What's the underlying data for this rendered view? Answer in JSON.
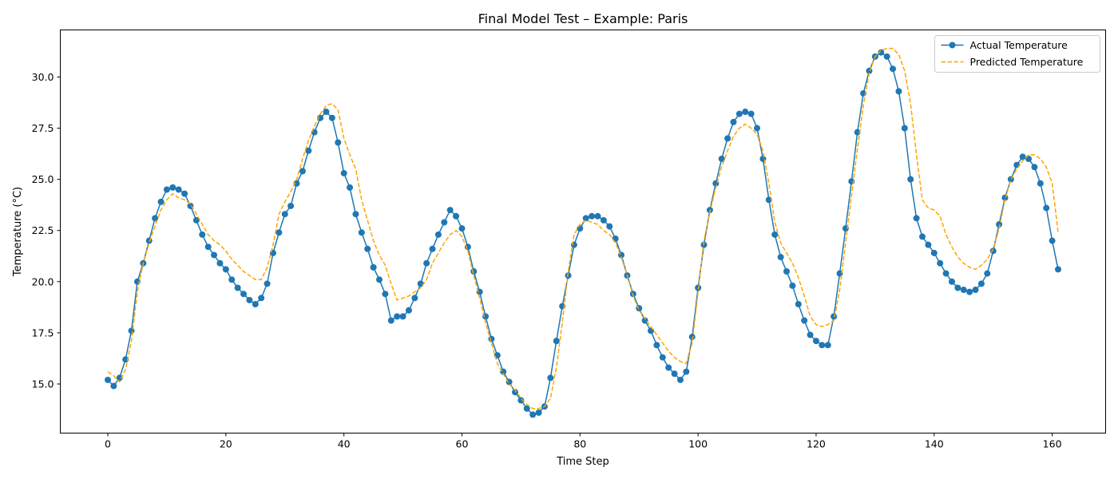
{
  "chart_data": {
    "type": "line",
    "title": "Final Model Test – Example: Paris",
    "xlabel": "Time Step",
    "ylabel": "Temperature (°C)",
    "xlim": [
      -8.05,
      169.05
    ],
    "ylim": [
      12.6,
      32.3
    ],
    "xticks": [
      0,
      20,
      40,
      60,
      80,
      100,
      120,
      140,
      160
    ],
    "yticks": [
      15.0,
      17.5,
      20.0,
      22.5,
      25.0,
      27.5,
      30.0
    ],
    "ytick_labels": [
      "15.0",
      "17.5",
      "20.0",
      "22.5",
      "25.0",
      "27.5",
      "30.0"
    ],
    "grid": false,
    "legend_position": "top-right",
    "series": [
      {
        "name": "Actual Temperature",
        "color": "#1f77b4",
        "style": "solid-with-markers",
        "values": [
          15.2,
          14.9,
          15.3,
          16.2,
          17.6,
          20.0,
          20.9,
          22.0,
          23.1,
          23.9,
          24.5,
          24.6,
          24.5,
          24.3,
          23.7,
          23.0,
          22.3,
          21.7,
          21.3,
          20.9,
          20.6,
          20.1,
          19.7,
          19.4,
          19.1,
          18.9,
          19.2,
          19.9,
          21.4,
          22.4,
          23.3,
          23.7,
          24.8,
          25.4,
          26.4,
          27.3,
          28.0,
          28.3,
          28.0,
          26.8,
          25.3,
          24.6,
          23.3,
          22.4,
          21.6,
          20.7,
          20.1,
          19.4,
          18.1,
          18.3,
          18.3,
          18.6,
          19.2,
          19.9,
          20.9,
          21.6,
          22.3,
          22.9,
          23.5,
          23.2,
          22.6,
          21.7,
          20.5,
          19.5,
          18.3,
          17.2,
          16.4,
          15.6,
          15.1,
          14.6,
          14.2,
          13.8,
          13.5,
          13.6,
          13.9,
          15.3,
          17.1,
          18.8,
          20.3,
          21.8,
          22.6,
          23.1,
          23.2,
          23.2,
          23.0,
          22.7,
          22.1,
          21.3,
          20.3,
          19.4,
          18.7,
          18.1,
          17.6,
          16.9,
          16.3,
          15.8,
          15.5,
          15.2,
          15.6,
          17.3,
          19.7,
          21.8,
          23.5,
          24.8,
          26.0,
          27.0,
          27.8,
          28.2,
          28.3,
          28.2,
          27.5,
          26.0,
          24.0,
          22.3,
          21.2,
          20.5,
          19.8,
          18.9,
          18.1,
          17.4,
          17.1,
          16.9,
          16.9,
          18.3,
          20.4,
          22.6,
          24.9,
          27.3,
          29.2,
          30.3,
          31.0,
          31.2,
          31.0,
          30.4,
          29.3,
          27.5,
          25.0,
          23.1,
          22.2,
          21.8,
          21.4,
          20.9,
          20.4,
          20.0,
          19.7,
          19.6,
          19.5,
          19.6,
          19.9,
          20.4,
          21.5,
          22.8,
          24.1,
          25.0,
          25.7,
          26.1,
          26.0,
          25.6,
          24.8,
          23.6,
          22.0,
          20.6
        ]
      },
      {
        "name": "Predicted Temperature",
        "color": "#ffa500",
        "style": "dashed",
        "values": [
          15.6,
          15.4,
          15.1,
          15.7,
          17.1,
          19.5,
          20.9,
          21.9,
          22.7,
          23.5,
          24.0,
          24.3,
          24.1,
          24.0,
          23.8,
          23.3,
          22.8,
          22.3,
          22.0,
          21.8,
          21.5,
          21.1,
          20.8,
          20.5,
          20.3,
          20.1,
          20.1,
          20.7,
          21.8,
          23.3,
          23.9,
          24.4,
          25.0,
          26.0,
          26.9,
          27.6,
          28.2,
          28.6,
          28.7,
          28.4,
          27.0,
          26.2,
          25.5,
          24.0,
          23.0,
          22.0,
          21.3,
          20.8,
          19.9,
          19.1,
          19.2,
          19.3,
          19.5,
          19.7,
          20.1,
          20.9,
          21.4,
          21.9,
          22.3,
          22.5,
          22.2,
          21.5,
          20.3,
          19.2,
          18.0,
          17.0,
          16.0,
          15.5,
          15.0,
          14.7,
          14.3,
          14.0,
          13.8,
          13.8,
          13.9,
          14.3,
          15.8,
          18.0,
          20.5,
          22.3,
          22.8,
          23.0,
          22.9,
          22.8,
          22.5,
          22.3,
          21.9,
          21.2,
          20.3,
          19.3,
          18.6,
          18.2,
          17.8,
          17.4,
          17.0,
          16.6,
          16.3,
          16.1,
          16.0,
          17.0,
          19.5,
          22.0,
          23.4,
          24.6,
          25.6,
          26.4,
          27.1,
          27.5,
          27.7,
          27.5,
          27.2,
          26.4,
          24.8,
          22.9,
          21.9,
          21.4,
          20.9,
          20.2,
          19.3,
          18.3,
          17.9,
          17.8,
          17.9,
          18.1,
          19.6,
          21.9,
          24.2,
          26.5,
          28.6,
          30.2,
          31.0,
          31.3,
          31.4,
          31.4,
          31.1,
          30.3,
          28.7,
          26.2,
          24.0,
          23.6,
          23.5,
          23.2,
          22.3,
          21.7,
          21.2,
          20.9,
          20.7,
          20.6,
          20.8,
          21.1,
          21.6,
          22.6,
          24.0,
          25.0,
          25.5,
          25.9,
          26.2,
          26.2,
          26.0,
          25.6,
          24.8,
          22.4
        ]
      }
    ]
  }
}
